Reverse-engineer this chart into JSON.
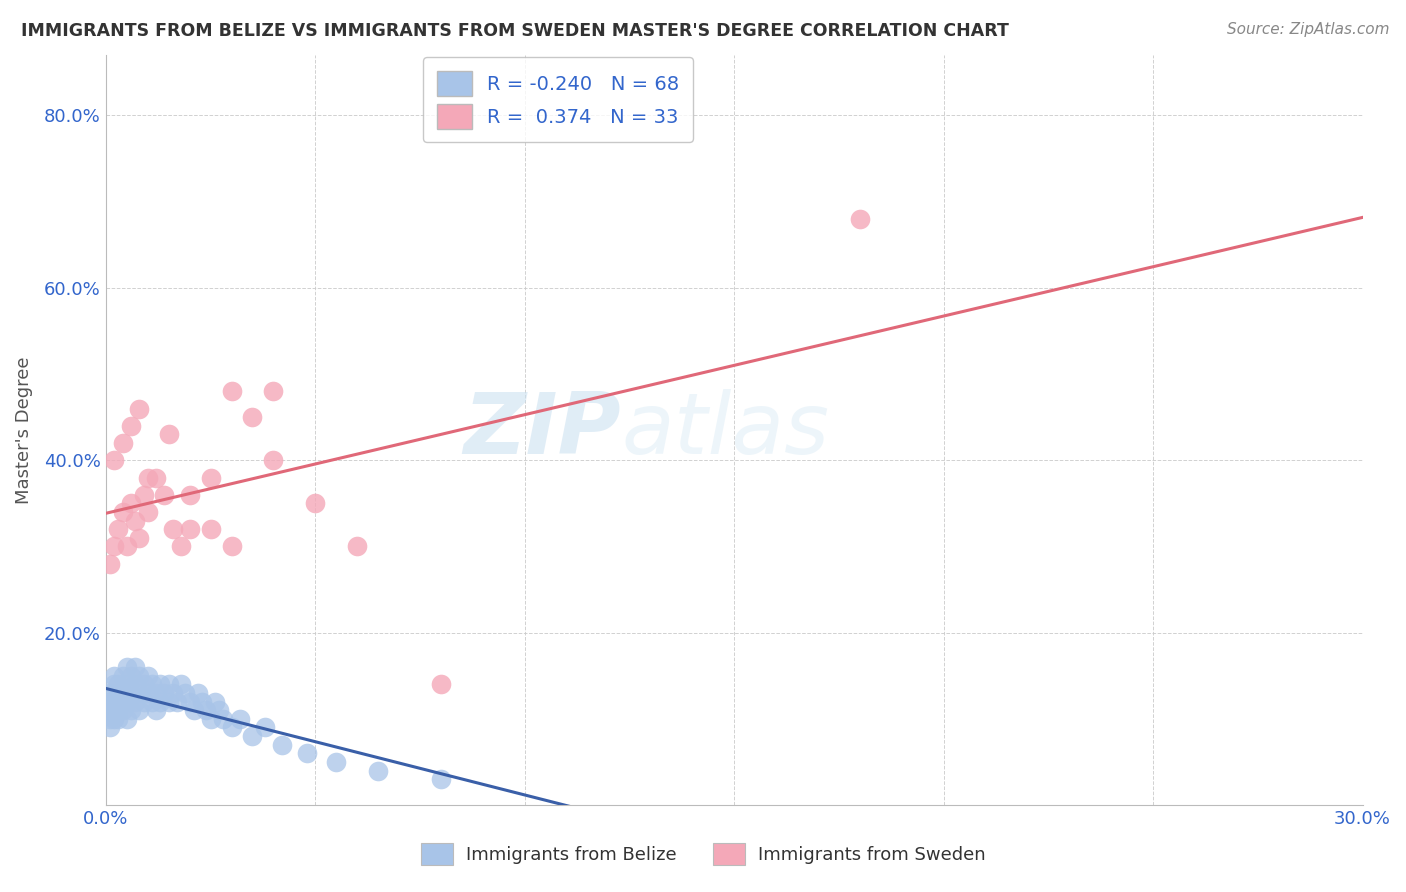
{
  "title": "IMMIGRANTS FROM BELIZE VS IMMIGRANTS FROM SWEDEN MASTER'S DEGREE CORRELATION CHART",
  "source": "Source: ZipAtlas.com",
  "ylabel": "Master's Degree",
  "xlim": [
    0.0,
    0.3
  ],
  "ylim": [
    0.0,
    0.87
  ],
  "belize_R": -0.24,
  "belize_N": 68,
  "sweden_R": 0.374,
  "sweden_N": 33,
  "blue_color": "#a8c4e8",
  "pink_color": "#f4a8b8",
  "blue_line_color": "#3a5fa8",
  "pink_line_color": "#e06878",
  "watermark_color": "#d8eaf8",
  "belize_x": [
    0.001,
    0.001,
    0.001,
    0.001,
    0.001,
    0.002,
    0.002,
    0.002,
    0.002,
    0.002,
    0.002,
    0.003,
    0.003,
    0.003,
    0.003,
    0.003,
    0.004,
    0.004,
    0.004,
    0.004,
    0.005,
    0.005,
    0.005,
    0.005,
    0.006,
    0.006,
    0.006,
    0.007,
    0.007,
    0.007,
    0.008,
    0.008,
    0.008,
    0.009,
    0.009,
    0.01,
    0.01,
    0.011,
    0.011,
    0.012,
    0.012,
    0.013,
    0.013,
    0.014,
    0.015,
    0.015,
    0.016,
    0.017,
    0.018,
    0.019,
    0.02,
    0.021,
    0.022,
    0.023,
    0.024,
    0.025,
    0.026,
    0.027,
    0.028,
    0.03,
    0.032,
    0.035,
    0.038,
    0.042,
    0.048,
    0.055,
    0.065,
    0.08
  ],
  "belize_y": [
    0.11,
    0.13,
    0.1,
    0.12,
    0.09,
    0.14,
    0.12,
    0.11,
    0.13,
    0.1,
    0.15,
    0.13,
    0.11,
    0.14,
    0.12,
    0.1,
    0.15,
    0.13,
    0.11,
    0.12,
    0.16,
    0.14,
    0.12,
    0.1,
    0.15,
    0.13,
    0.11,
    0.14,
    0.12,
    0.16,
    0.13,
    0.11,
    0.15,
    0.14,
    0.12,
    0.15,
    0.13,
    0.14,
    0.12,
    0.13,
    0.11,
    0.14,
    0.12,
    0.13,
    0.14,
    0.12,
    0.13,
    0.12,
    0.14,
    0.13,
    0.12,
    0.11,
    0.13,
    0.12,
    0.11,
    0.1,
    0.12,
    0.11,
    0.1,
    0.09,
    0.1,
    0.08,
    0.09,
    0.07,
    0.06,
    0.05,
    0.04,
    0.03
  ],
  "sweden_x": [
    0.001,
    0.002,
    0.003,
    0.004,
    0.005,
    0.006,
    0.007,
    0.008,
    0.009,
    0.01,
    0.012,
    0.014,
    0.016,
    0.018,
    0.02,
    0.025,
    0.03,
    0.035,
    0.04,
    0.05,
    0.002,
    0.004,
    0.006,
    0.008,
    0.01,
    0.015,
    0.02,
    0.025,
    0.03,
    0.04,
    0.06,
    0.08,
    0.18
  ],
  "sweden_y": [
    0.28,
    0.3,
    0.32,
    0.34,
    0.3,
    0.35,
    0.33,
    0.31,
    0.36,
    0.34,
    0.38,
    0.36,
    0.32,
    0.3,
    0.32,
    0.38,
    0.3,
    0.45,
    0.48,
    0.35,
    0.4,
    0.42,
    0.44,
    0.46,
    0.38,
    0.43,
    0.36,
    0.32,
    0.48,
    0.4,
    0.3,
    0.14,
    0.68
  ]
}
